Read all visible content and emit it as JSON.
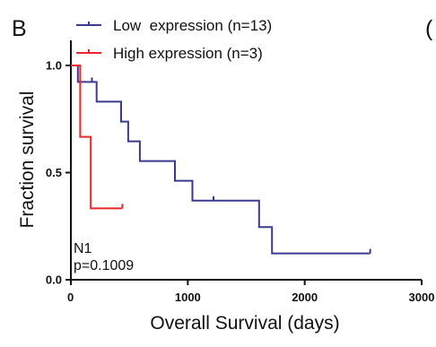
{
  "panel_label": "B",
  "cut_panel_label": "(",
  "colors": {
    "low": "#3c3a8f",
    "high": "#e8262b",
    "axis": "#111111"
  },
  "chart_data": {
    "type": "line",
    "chart_style": "kaplan-meier step",
    "xlabel": "Overall Survival (days)",
    "ylabel": "Fraction survival",
    "xlim": [
      0,
      3000
    ],
    "ylim": [
      0,
      1.0
    ],
    "x_ticks": [
      0,
      1000,
      2000,
      3000
    ],
    "x_tick_labels": [
      "0",
      "1000",
      "2000",
      "3000"
    ],
    "y_ticks": [
      0.0,
      0.5,
      1.0
    ],
    "y_tick_labels": [
      "0.0",
      "0.5",
      "1.0"
    ],
    "grid": false,
    "legend_position": "top-left",
    "series": [
      {
        "name": "Low  expression (n=13)",
        "color": "#3c3a8f",
        "x": [
          0,
          60,
          60,
          220,
          220,
          430,
          430,
          490,
          490,
          590,
          590,
          890,
          890,
          1040,
          1040,
          1610,
          1610,
          1720,
          1720,
          2560
        ],
        "y": [
          1.0,
          1.0,
          0.923,
          0.923,
          0.831,
          0.831,
          0.738,
          0.738,
          0.646,
          0.646,
          0.554,
          0.554,
          0.462,
          0.462,
          0.369,
          0.369,
          0.246,
          0.246,
          0.123,
          0.123
        ],
        "censored": [
          {
            "x": 180,
            "y": 0.923
          },
          {
            "x": 1220,
            "y": 0.369
          },
          {
            "x": 2560,
            "y": 0.123
          }
        ]
      },
      {
        "name": "High expression (n=3)",
        "color": "#e8262b",
        "x": [
          0,
          80,
          80,
          170,
          170,
          440
        ],
        "y": [
          1.0,
          1.0,
          0.667,
          0.667,
          0.333,
          0.333
        ],
        "censored": [
          {
            "x": 440,
            "y": 0.333
          }
        ]
      }
    ],
    "annotations": [
      "N1",
      "p=0.1009"
    ]
  }
}
